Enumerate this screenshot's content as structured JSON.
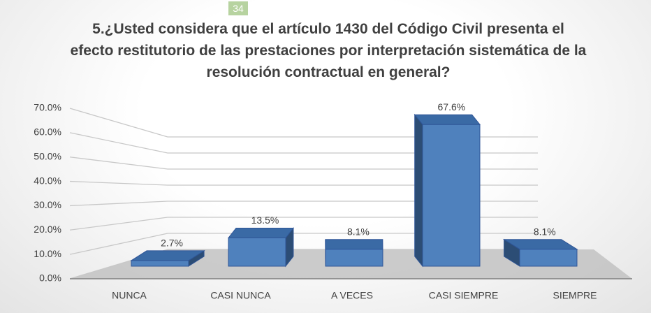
{
  "page_number": "34",
  "chart_data": {
    "type": "bar3d",
    "title": "5.¿Usted considera que el artículo 1430 del Código Civil presenta el efecto restitutorio de las prestaciones por interpretación sistemática de la resolución contractual en general?",
    "categories": [
      "NUNCA",
      "CASI NUNCA",
      "A VECES",
      "CASI SIEMPRE",
      "SIEMPRE"
    ],
    "values": [
      2.7,
      13.5,
      8.1,
      67.6,
      8.1
    ],
    "value_labels": [
      "2.7%",
      "13.5%",
      "8.1%",
      "67.6%",
      "8.1%"
    ],
    "color": "#4f81bd",
    "ylim": [
      0,
      70
    ],
    "yticks": [
      {
        "value": 0,
        "label": "0.0%"
      },
      {
        "value": 10,
        "label": "10.0%"
      },
      {
        "value": 20,
        "label": "20.0%"
      },
      {
        "value": 30,
        "label": "30.0%"
      },
      {
        "value": 40,
        "label": "40.0%"
      },
      {
        "value": 50,
        "label": "50.0%"
      },
      {
        "value": 60,
        "label": "60.0%"
      },
      {
        "value": 70,
        "label": "70.0%"
      }
    ],
    "grid": true
  }
}
